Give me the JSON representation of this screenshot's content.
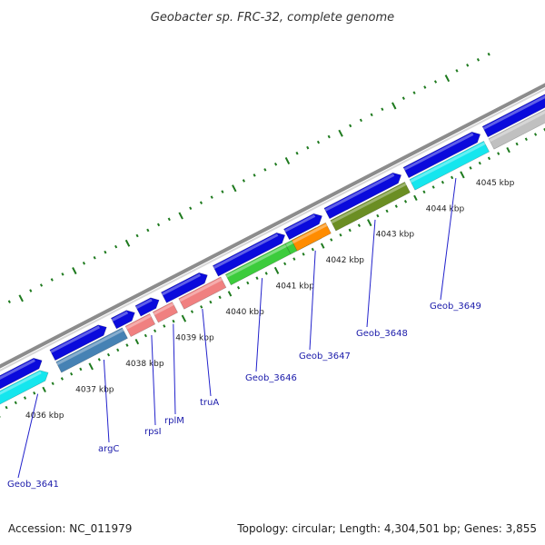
{
  "title": "Geobacter sp. FRC-32, complete genome",
  "footer": {
    "accession": "Accession: NC_011979",
    "summary": "Topology: circular; Length: 4,304,501 bp; Genes: 3,855"
  },
  "colors": {
    "backbone": "#8c8c8c",
    "tick": "#1e7a1e",
    "label_line": "#2222cc",
    "label_text": "#1a1aaa"
  },
  "scale_ticks": [
    "4036 kbp",
    "4037 kbp",
    "4038 kbp",
    "4039 kbp",
    "4040 kbp",
    "4041 kbp",
    "4042 kbp",
    "4043 kbp",
    "4044 kbp",
    "4045 kbp"
  ],
  "genes": [
    {
      "label": "Geob_3641"
    },
    {
      "label": "argC"
    },
    {
      "label": "rpsI"
    },
    {
      "label": "rplM"
    },
    {
      "label": "truA"
    },
    {
      "label": "Geob_3646"
    },
    {
      "label": "Geob_3647"
    },
    {
      "label": "Geob_3648"
    },
    {
      "label": "Geob_3649"
    }
  ]
}
